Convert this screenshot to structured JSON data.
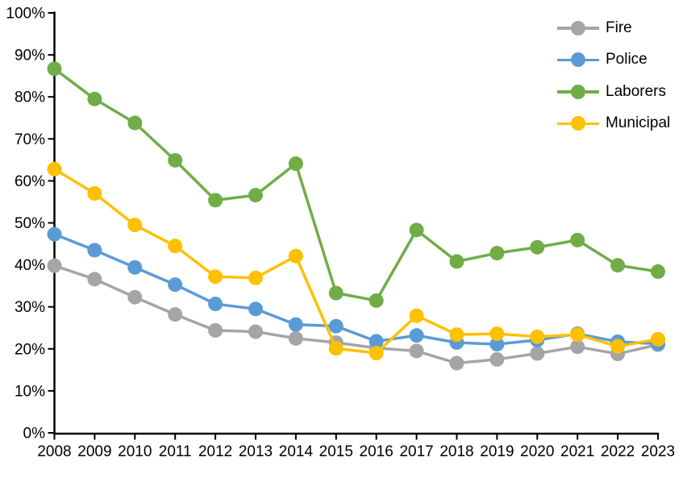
{
  "chart_data": {
    "type": "line",
    "title": "",
    "xlabel": "",
    "ylabel": "",
    "categories": [
      "2008",
      "2009",
      "2010",
      "2011",
      "2012",
      "2013",
      "2014",
      "2015",
      "2016",
      "2017",
      "2018",
      "2019",
      "2020",
      "2021",
      "2022",
      "2023"
    ],
    "series": [
      {
        "name": "Fire",
        "color": "#A5A5A5",
        "values": [
          39.8,
          36.6,
          32.3,
          28.2,
          24.4,
          24.1,
          22.5,
          21.5,
          20.2,
          19.5,
          16.6,
          17.5,
          18.9,
          20.5,
          18.8,
          21.0
        ]
      },
      {
        "name": "Police",
        "color": "#5B9BD5",
        "values": [
          47.3,
          43.5,
          39.4,
          35.3,
          30.7,
          29.5,
          25.8,
          25.4,
          21.8,
          23.2,
          21.5,
          21.1,
          22.1,
          23.6,
          21.7,
          21.2
        ]
      },
      {
        "name": "Laborers",
        "color": "#70AD47",
        "values": [
          86.7,
          79.5,
          73.8,
          64.9,
          55.4,
          56.6,
          64.1,
          33.3,
          31.5,
          48.3,
          40.8,
          42.8,
          44.2,
          45.9,
          39.9,
          38.4
        ]
      },
      {
        "name": "Municipal",
        "color": "#FFC000",
        "values": [
          62.8,
          57.0,
          49.5,
          44.5,
          37.2,
          36.9,
          42.1,
          20.1,
          19.0,
          27.9,
          23.4,
          23.6,
          22.9,
          23.4,
          20.6,
          22.3
        ]
      }
    ],
    "ylim": [
      0,
      100
    ],
    "ytick_step": 10,
    "ytick_labels": [
      "0%",
      "10%",
      "20%",
      "30%",
      "40%",
      "50%",
      "60%",
      "70%",
      "80%",
      "90%",
      "100%"
    ],
    "grid": false,
    "legend_position": "top-right",
    "axis_color": "#000000",
    "background": "#FFFFFF"
  }
}
